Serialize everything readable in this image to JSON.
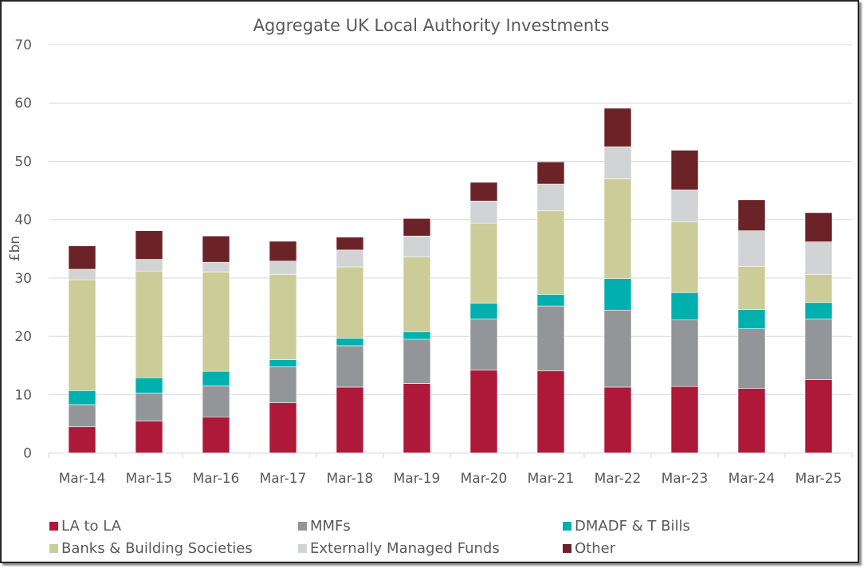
{
  "chart_data": {
    "type": "bar",
    "stacked": true,
    "title": "Aggregate UK Local Authority Investments",
    "xlabel": "",
    "ylabel": "£bn",
    "ylim": [
      0,
      70
    ],
    "yticks": [
      0,
      10,
      20,
      30,
      40,
      50,
      60,
      70
    ],
    "grid": true,
    "legend_position": "bottom",
    "categories": [
      "Mar-14",
      "Mar-15",
      "Mar-16",
      "Mar-17",
      "Mar-18",
      "Mar-19",
      "Mar-20",
      "Mar-21",
      "Mar-22",
      "Mar-23",
      "Mar-24",
      "Mar-25"
    ],
    "series": [
      {
        "name": "LA to LA",
        "color": "#AE1839",
        "values": [
          4.5,
          5.5,
          6.2,
          8.6,
          11.3,
          11.9,
          14.2,
          14.1,
          11.3,
          11.4,
          11.1,
          12.6
        ]
      },
      {
        "name": "MMFs",
        "color": "#939598",
        "values": [
          3.8,
          4.8,
          5.3,
          6.2,
          7.1,
          7.6,
          8.8,
          11.1,
          13.2,
          11.4,
          10.2,
          10.4
        ]
      },
      {
        "name": "DMADF & T Bills",
        "color": "#00B0AE",
        "values": [
          2.4,
          2.6,
          2.5,
          1.2,
          1.3,
          1.3,
          2.7,
          2.0,
          5.4,
          4.7,
          3.3,
          2.8
        ]
      },
      {
        "name": "Banks & Building Societies",
        "color": "#CCCC99",
        "values": [
          19.0,
          18.3,
          17.0,
          14.6,
          12.2,
          12.8,
          13.7,
          14.3,
          17.1,
          12.1,
          7.4,
          4.8
        ]
      },
      {
        "name": "Externally Managed Funds",
        "color": "#D1D3D4",
        "values": [
          1.8,
          2.0,
          1.7,
          2.3,
          2.9,
          3.6,
          3.8,
          4.6,
          5.5,
          5.5,
          6.1,
          5.6
        ]
      },
      {
        "name": "Other",
        "color": "#6B2328",
        "values": [
          4.0,
          4.9,
          4.5,
          3.4,
          2.2,
          3.0,
          3.2,
          3.8,
          6.6,
          6.8,
          5.3,
          5.0
        ]
      }
    ]
  },
  "legend_order": [
    0,
    1,
    2,
    3,
    4,
    5
  ]
}
